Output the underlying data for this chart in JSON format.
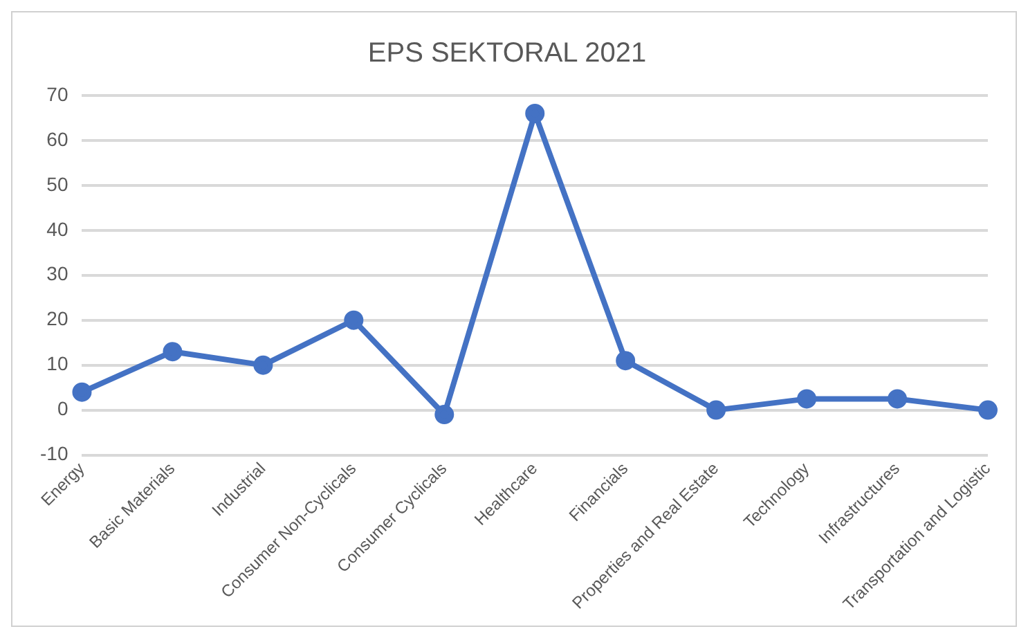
{
  "chart_data": {
    "type": "line",
    "title": "EPS SEKTORAL 2021",
    "categories": [
      "Energy",
      "Basic Materials",
      "Industrial",
      "Consumer Non-Cyclicals",
      "Consumer Cyclicals",
      "Healthcare",
      "Financials",
      "Properties and Real Estate",
      "Technology",
      "Infrastructures",
      "Transportation and Logistic"
    ],
    "series": [
      {
        "color": "#4472c4",
        "values": [
          4,
          13,
          10,
          20,
          -1,
          66,
          11,
          0,
          2.5,
          2.5,
          0
        ]
      }
    ],
    "ylim": [
      -10,
      70
    ],
    "yticks": [
      -10,
      0,
      10,
      20,
      30,
      40,
      50,
      60,
      70
    ],
    "grid": "y",
    "legend": false,
    "marker": "circle",
    "line_style": "solid"
  }
}
